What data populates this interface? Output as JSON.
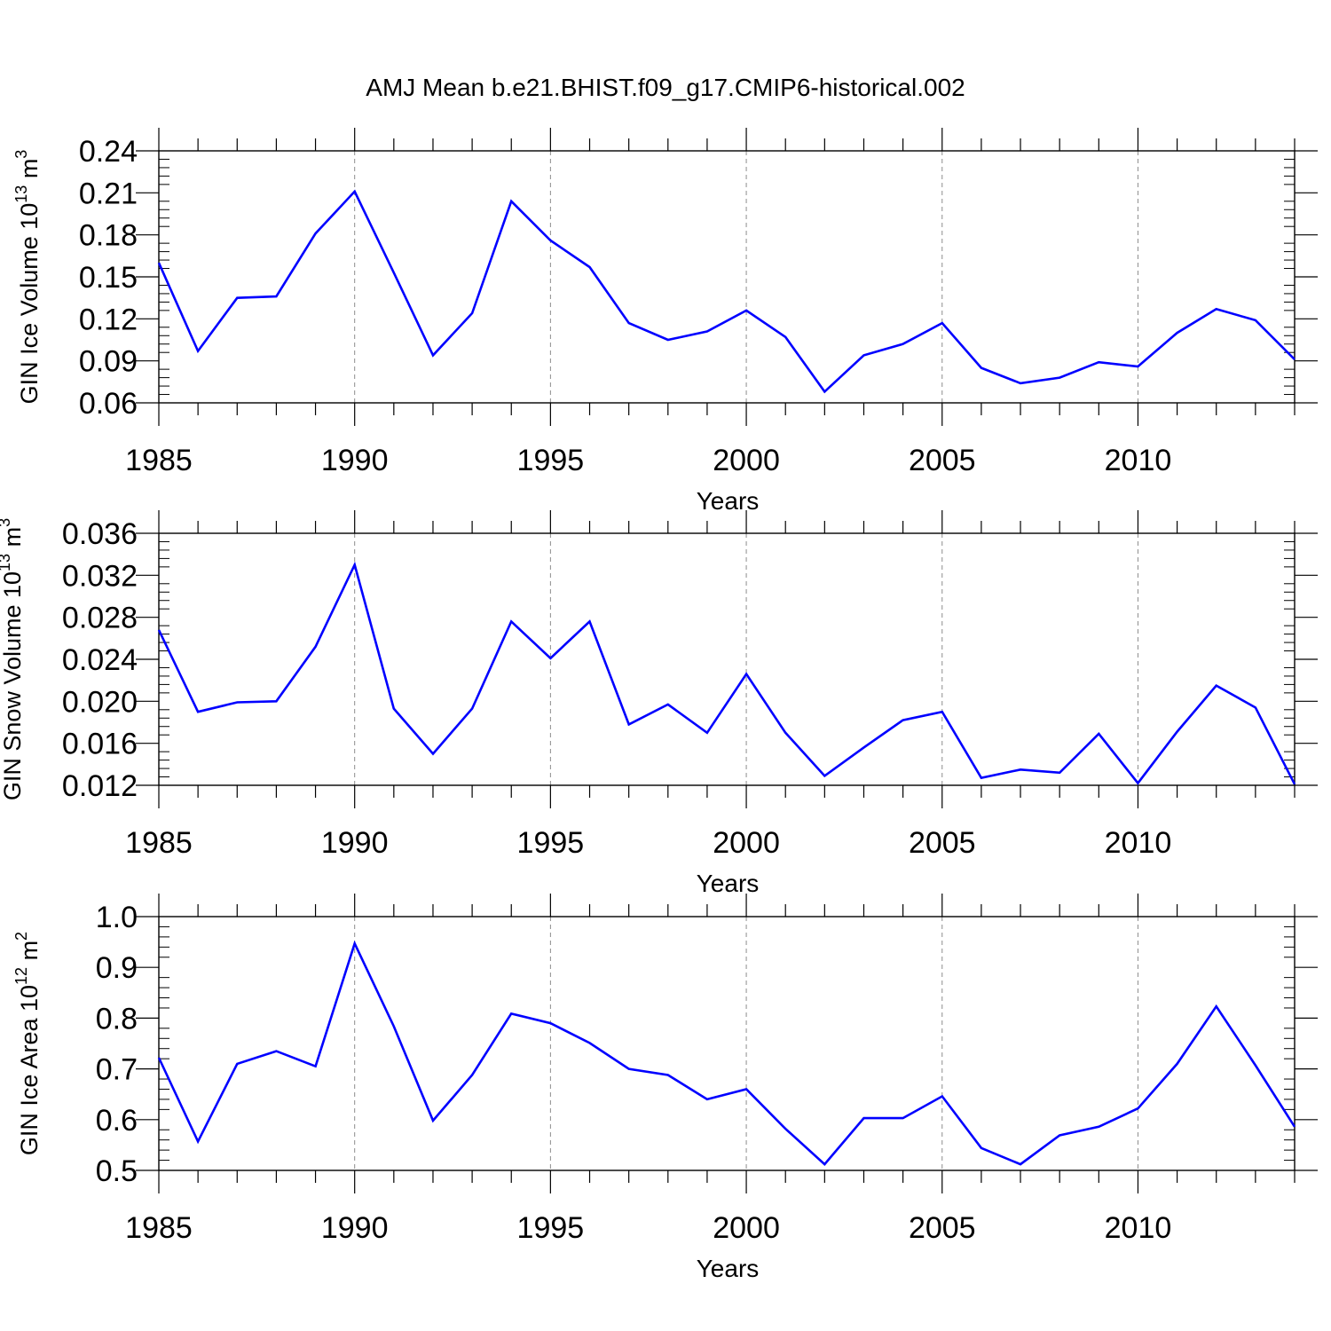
{
  "title": "AMJ Mean b.e21.BHIST.f09_g17.CMIP6-historical.002",
  "line_color": "#0000ff",
  "chart_data": [
    {
      "type": "line",
      "title": "",
      "xlabel": "Years",
      "ylabel": {
        "main": "GIN Ice Volume 10",
        "exp": "13",
        "unit": " m",
        "unit_exp": "3"
      },
      "xlim": [
        1985,
        2014
      ],
      "ylim": [
        0.06,
        0.24
      ],
      "xticks": [
        1985,
        1990,
        1995,
        2000,
        2005,
        2010
      ],
      "yticks": [
        "0.06",
        "0.09",
        "0.12",
        "0.15",
        "0.18",
        "0.21",
        "0.24"
      ],
      "x": [
        1985,
        1986,
        1987,
        1988,
        1989,
        1990,
        1991,
        1992,
        1993,
        1994,
        1995,
        1996,
        1997,
        1998,
        1999,
        2000,
        2001,
        2002,
        2003,
        2004,
        2005,
        2006,
        2007,
        2008,
        2009,
        2010,
        2011,
        2012,
        2013,
        2014
      ],
      "series": [
        {
          "name": "GIN Ice Volume",
          "values": [
            0.16,
            0.097,
            0.135,
            0.136,
            0.181,
            0.211,
            0.153,
            0.094,
            0.124,
            0.204,
            0.176,
            0.157,
            0.117,
            0.105,
            0.111,
            0.126,
            0.107,
            0.068,
            0.094,
            0.102,
            0.117,
            0.085,
            0.074,
            0.078,
            0.089,
            0.086,
            0.11,
            0.127,
            0.119,
            0.091
          ]
        }
      ],
      "grid": "vertical dashed at major x ticks"
    },
    {
      "type": "line",
      "title": "",
      "xlabel": "Years",
      "ylabel": {
        "main": "GIN Snow Volume 10",
        "exp": "13",
        "unit": " m",
        "unit_exp": "3"
      },
      "xlim": [
        1985,
        2014
      ],
      "ylim": [
        0.012,
        0.036
      ],
      "xticks": [
        1985,
        1990,
        1995,
        2000,
        2005,
        2010
      ],
      "yticks": [
        "0.012",
        "0.016",
        "0.020",
        "0.024",
        "0.028",
        "0.032",
        "0.036"
      ],
      "x": [
        1985,
        1986,
        1987,
        1988,
        1989,
        1990,
        1991,
        1992,
        1993,
        1994,
        1995,
        1996,
        1997,
        1998,
        1999,
        2000,
        2001,
        2002,
        2003,
        2004,
        2005,
        2006,
        2007,
        2008,
        2009,
        2010,
        2011,
        2012,
        2013,
        2014
      ],
      "series": [
        {
          "name": "GIN Snow Volume",
          "values": [
            0.0268,
            0.019,
            0.0199,
            0.02,
            0.0252,
            0.033,
            0.0193,
            0.015,
            0.0193,
            0.0276,
            0.0241,
            0.0276,
            0.0178,
            0.0197,
            0.017,
            0.0226,
            0.017,
            0.0129,
            0.0156,
            0.0182,
            0.019,
            0.0127,
            0.0135,
            0.0132,
            0.0169,
            0.0122,
            0.0171,
            0.0215,
            0.0194,
            0.0121
          ]
        }
      ],
      "grid": "vertical dashed at major x ticks"
    },
    {
      "type": "line",
      "title": "",
      "xlabel": "Years",
      "ylabel": {
        "main": "GIN Ice Area 10",
        "exp": "12",
        "unit": " m",
        "unit_exp": "2"
      },
      "xlim": [
        1985,
        2014
      ],
      "ylim": [
        0.5,
        1.0
      ],
      "xticks": [
        1985,
        1990,
        1995,
        2000,
        2005,
        2010
      ],
      "yticks": [
        "0.5",
        "0.6",
        "0.7",
        "0.8",
        "0.9",
        "1.0"
      ],
      "x": [
        1985,
        1986,
        1987,
        1988,
        1989,
        1990,
        1991,
        1992,
        1993,
        1994,
        1995,
        1996,
        1997,
        1998,
        1999,
        2000,
        2001,
        2002,
        2003,
        2004,
        2005,
        2006,
        2007,
        2008,
        2009,
        2010,
        2011,
        2012,
        2013,
        2014
      ],
      "series": [
        {
          "name": "GIN Ice Area",
          "values": [
            0.722,
            0.557,
            0.71,
            0.735,
            0.705,
            0.947,
            0.784,
            0.598,
            0.688,
            0.809,
            0.79,
            0.751,
            0.7,
            0.688,
            0.64,
            0.66,
            0.582,
            0.512,
            0.603,
            0.603,
            0.646,
            0.544,
            0.512,
            0.569,
            0.586,
            0.622,
            0.71,
            0.823,
            0.707,
            0.586
          ]
        }
      ],
      "grid": "vertical dashed at major x ticks"
    }
  ]
}
